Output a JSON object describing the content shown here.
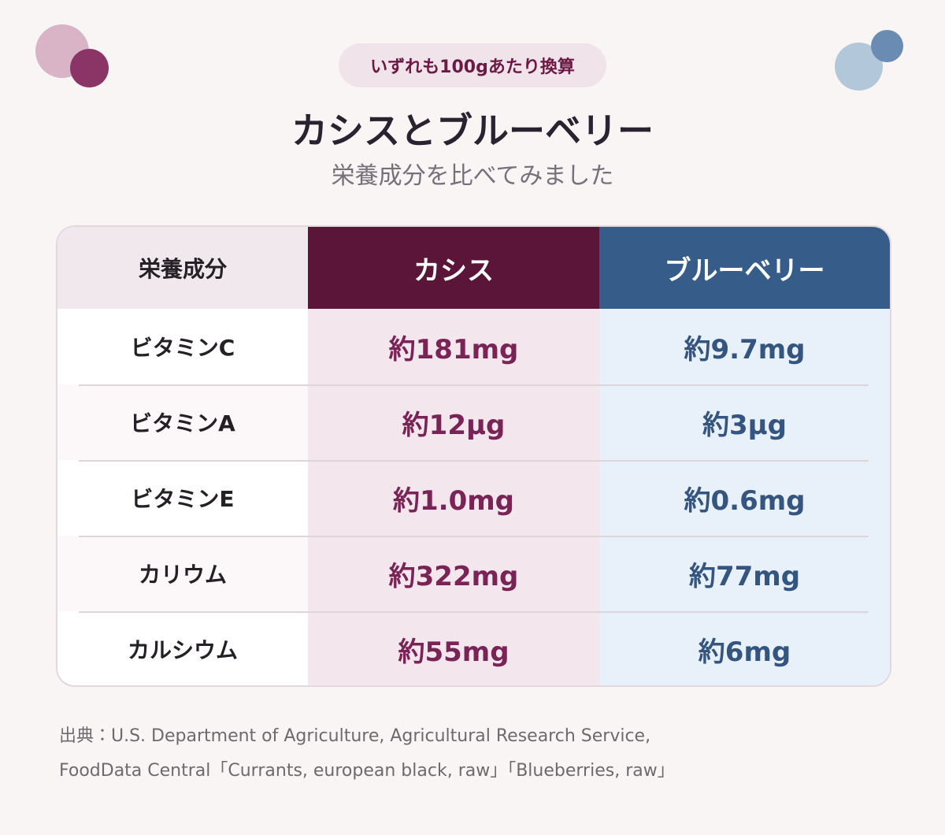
{
  "badge": "いずれも100gあたり換算",
  "header": {
    "title": "カシスとブルーベリー",
    "subtitle": "栄養成分を比べてみました"
  },
  "table": {
    "columns": [
      "栄養成分",
      "カシス",
      "ブルーベリー"
    ],
    "rows": [
      [
        "ビタミンC",
        "約181mg",
        "約9.7mg"
      ],
      [
        "ビタミンA",
        "約12µg",
        "約3µg"
      ],
      [
        "ビタミンE",
        "約1.0mg",
        "約0.6mg"
      ],
      [
        "カリウム",
        "約322mg",
        "約77mg"
      ],
      [
        "カルシウム",
        "約55mg",
        "約6mg"
      ]
    ]
  },
  "source": [
    "出典：U.S. Department of Agriculture, Agricultural Research Service,",
    "FoodData Central「Currants, european black, raw」「Blueberries, raw」"
  ]
}
